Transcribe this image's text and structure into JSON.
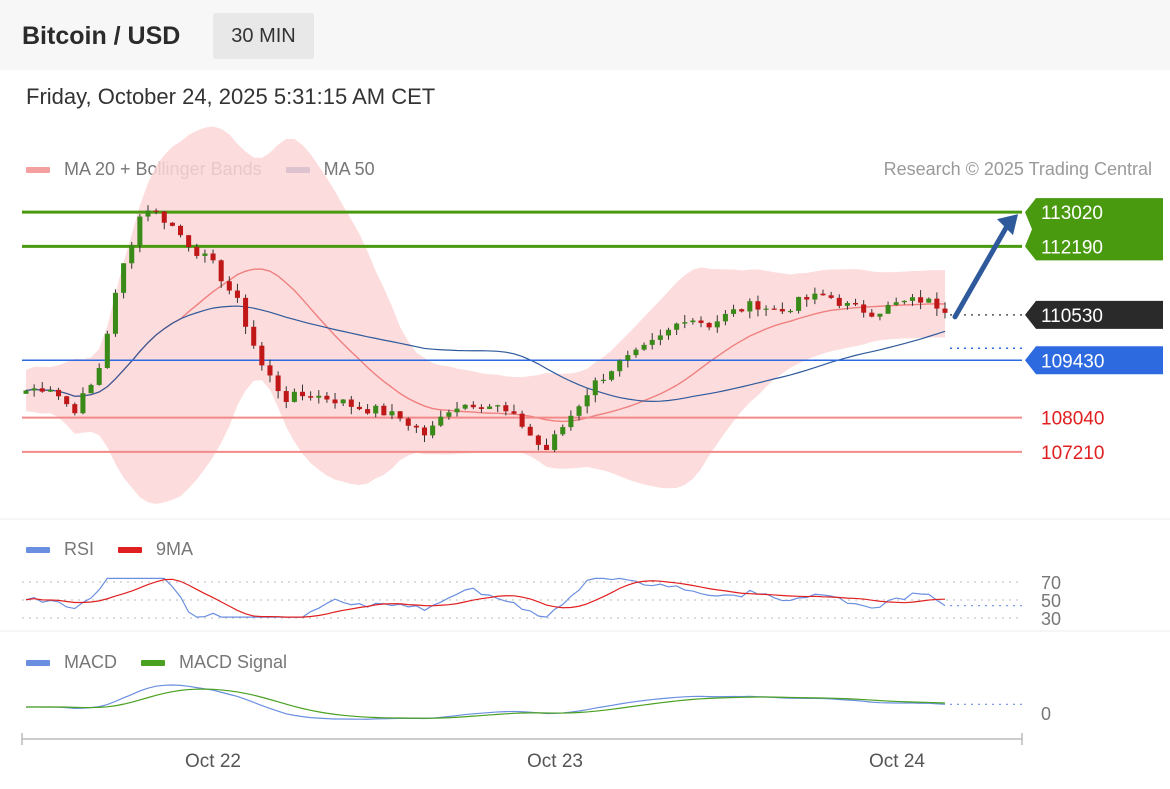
{
  "header": {
    "title": "Bitcoin / USD",
    "timeframe": "30 MIN"
  },
  "timestamp": "Friday, October 24, 2025 5:31:15 AM CET",
  "credit": "Research © 2025 Trading Central",
  "legends": {
    "price": [
      {
        "label": "MA 20 + Bollinger Bands",
        "color": "#f4a0a0"
      },
      {
        "label": "MA 50",
        "color": "#2e5a9c"
      }
    ],
    "rsi": [
      {
        "label": "RSI",
        "color": "#6b8fe0"
      },
      {
        "label": "9MA",
        "color": "#e02020"
      }
    ],
    "macd": [
      {
        "label": "MACD",
        "color": "#6b8fe0"
      },
      {
        "label": "MACD Signal",
        "color": "#4aa020"
      }
    ]
  },
  "colors": {
    "resistance": "#4a9a10",
    "support_blue": "#2d6ae0",
    "support_red": "#f28a8a",
    "last_price": "#2a2a2a",
    "bull_candle": "#3a8a1a",
    "bear_candle": "#c01818",
    "band_fill": "#fbd6d6",
    "arrow": "#2e5a9c"
  },
  "chart_data": [
    {
      "type": "candlestick",
      "title": "Bitcoin / USD",
      "timeframe": "30 MIN",
      "ylim": [
        105800,
        113800
      ],
      "x_ticks": [
        "Oct 22",
        "Oct 23",
        "Oct 24"
      ],
      "levels": [
        {
          "value": 113020,
          "label": "113020",
          "kind": "resistance"
        },
        {
          "value": 112190,
          "label": "112190",
          "kind": "resistance"
        },
        {
          "value": 110530,
          "label": "110530",
          "kind": "last"
        },
        {
          "value": 109430,
          "label": "109430",
          "kind": "support-blue"
        },
        {
          "value": 108040,
          "label": "108040",
          "kind": "support-red"
        },
        {
          "value": 107210,
          "label": "107210",
          "kind": "support-red"
        }
      ],
      "close_path": [
        108700,
        108800,
        108200,
        109000,
        111500,
        113200,
        112800,
        112200,
        111700,
        110800,
        109300,
        108500,
        108600,
        108500,
        108300,
        108200,
        108000,
        107600,
        108300,
        108400,
        108300,
        107900,
        107200,
        108000,
        108800,
        109300,
        109600,
        110000,
        110500,
        110300,
        110600,
        110800,
        110600,
        110900,
        111000,
        110700,
        110600,
        110800,
        110900,
        110700
      ]
    },
    {
      "type": "line",
      "name": "RSI",
      "ylim": [
        30,
        70
      ],
      "y_ticks": [
        70,
        50,
        30
      ],
      "series": [
        "RSI",
        "9MA"
      ]
    },
    {
      "type": "line",
      "name": "MACD",
      "y_ticks": [
        0
      ],
      "series": [
        "MACD",
        "MACD Signal"
      ]
    }
  ],
  "arrow": {
    "from_value": 110530,
    "to_value": 113020
  }
}
